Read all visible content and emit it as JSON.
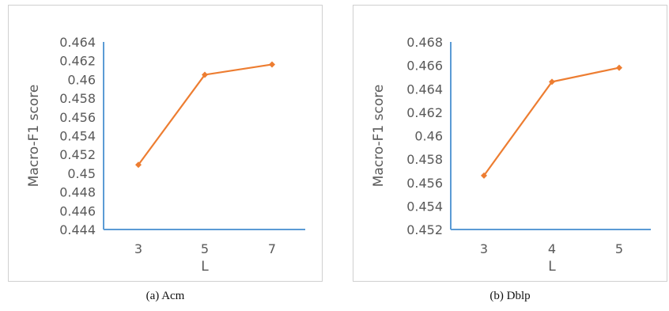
{
  "charts": [
    {
      "caption": "(a) Acm",
      "chart_data": {
        "type": "line",
        "categories": [
          "3",
          "5",
          "7"
        ],
        "series": [
          {
            "values": [
              0.4509,
              0.4605,
              0.4616
            ]
          }
        ],
        "ylabel": "Macro-F1 score",
        "xlabel": "L",
        "ylim": [
          0.444,
          0.464
        ],
        "yticks": [
          "0.444",
          "0.446",
          "0.448",
          "0.45",
          "0.452",
          "0.454",
          "0.456",
          "0.458",
          "0.46",
          "0.462",
          "0.464"
        ],
        "grid": false,
        "color": "#ED7D31",
        "axis_color": "#5B9BD5"
      }
    },
    {
      "caption": "(b) Dblp",
      "chart_data": {
        "type": "line",
        "categories": [
          "3",
          "4",
          "5"
        ],
        "series": [
          {
            "values": [
              0.4566,
              0.4646,
              0.4658
            ]
          }
        ],
        "ylabel": "Macro-F1 score",
        "xlabel": "L",
        "ylim": [
          0.452,
          0.468
        ],
        "yticks": [
          "0.452",
          "0.454",
          "0.456",
          "0.458",
          "0.46",
          "0.462",
          "0.464",
          "0.466",
          "0.468"
        ],
        "grid": false,
        "color": "#ED7D31",
        "axis_color": "#5B9BD5"
      }
    }
  ]
}
